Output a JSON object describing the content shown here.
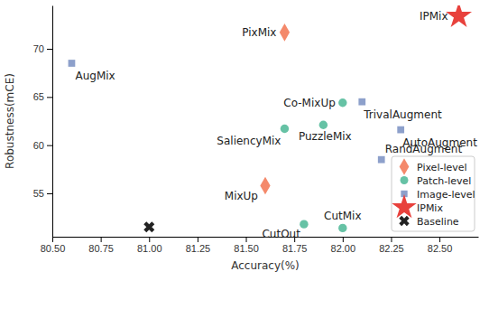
{
  "chart_data": {
    "type": "scatter",
    "x_label": "Accuracy(%)",
    "y_label": "Robustness(mCE)",
    "xlim": [
      80.5,
      82.7
    ],
    "ylim": [
      50.5,
      74.5
    ],
    "xticks": [
      {
        "value": 80.5,
        "label": "80.50"
      },
      80.75,
      {
        "value": 81,
        "label": "81.00"
      },
      81.25,
      {
        "value": 81.5,
        "label": "81.50"
      },
      81.75,
      {
        "value": 82,
        "label": "82.00"
      },
      82.25,
      {
        "value": 82.5,
        "label": "82.50"
      }
    ],
    "yticks": [
      55,
      60,
      65,
      70
    ],
    "grid": false,
    "legend": "lower right",
    "series": [
      {
        "name": "Pixel-level",
        "color": "#f4896b",
        "marker": "diamond",
        "labels": [
          "PixMix",
          "MixUp"
        ],
        "x": [
          81.7,
          81.6
        ],
        "values": [
          71.7,
          55.8
        ]
      },
      {
        "name": "Patch-level",
        "color": "#66c2a5",
        "marker": "circle",
        "labels": [
          "Co-MixUp",
          "SaliencyMix",
          "PuzzleMix",
          "CutOut",
          "CutMix"
        ],
        "x": [
          82.0,
          81.7,
          81.9,
          81.8,
          82.0
        ],
        "values": [
          64.4,
          61.7,
          62.1,
          51.8,
          51.4
        ]
      },
      {
        "name": "Image-level",
        "color": "#8da0cb",
        "marker": "square",
        "labels": [
          "AugMix",
          "TrivalAugment",
          "AutoAugment",
          "RandAugment"
        ],
        "x": [
          80.6,
          82.1,
          82.3,
          82.2
        ],
        "values": [
          68.5,
          64.5,
          61.6,
          58.5
        ]
      },
      {
        "name": "IPMix",
        "color": "#e8413c",
        "marker": "star",
        "labels": [
          "IPMix"
        ],
        "x": [
          82.6
        ],
        "values": [
          73.4
        ]
      },
      {
        "name": "Baseline",
        "color": "#222222",
        "marker": "x",
        "x": [
          81.0
        ],
        "values": [
          51.5
        ]
      }
    ]
  }
}
